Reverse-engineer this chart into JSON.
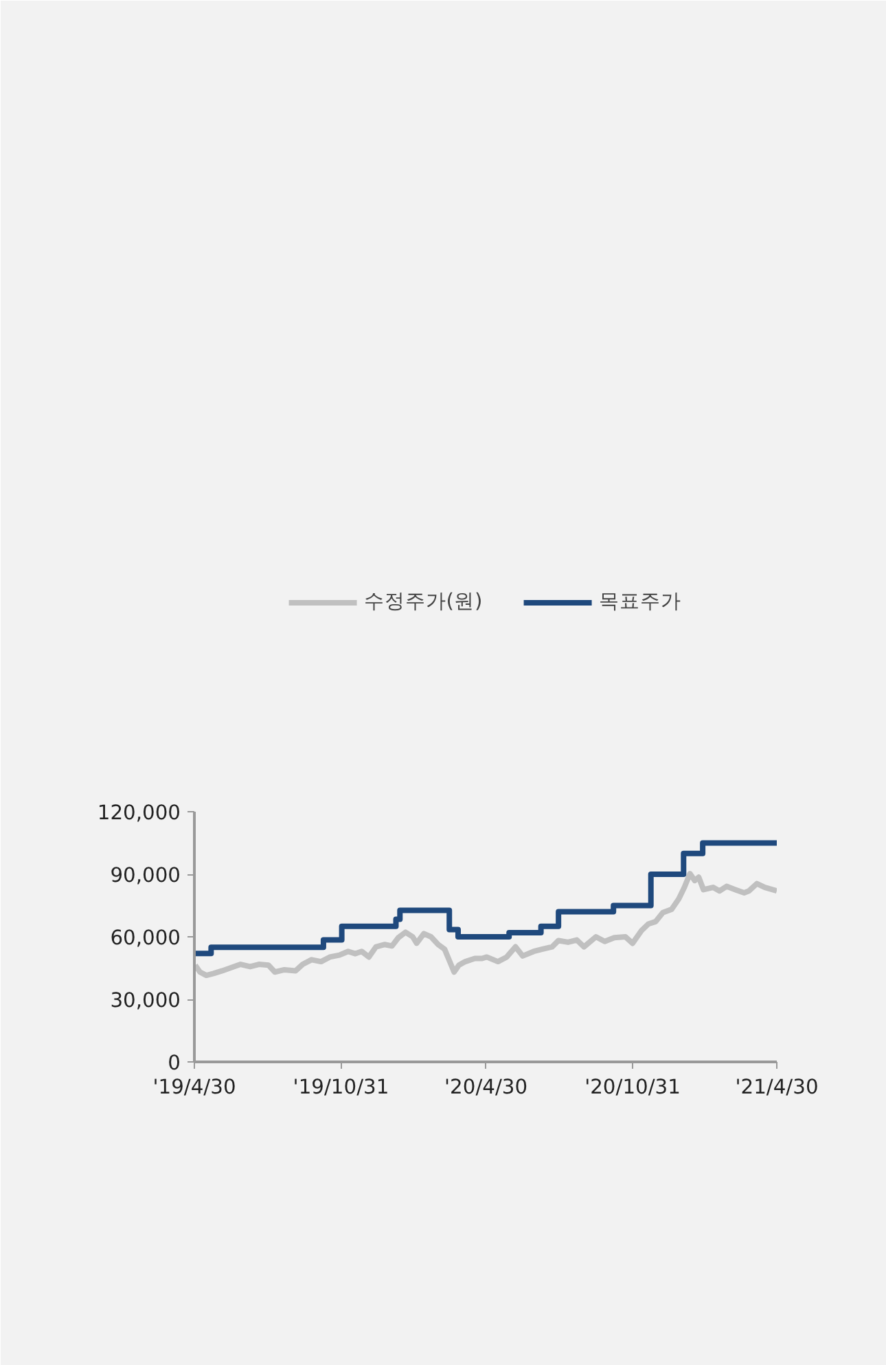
{
  "chart_data": {
    "type": "line",
    "xlim": [
      "2019-04-30",
      "2021-04-30"
    ],
    "xticks": [
      {
        "value": "2019-04-30",
        "label": "'19/4/30"
      },
      {
        "value": "2019-10-31",
        "label": "'19/10/31"
      },
      {
        "value": "2020-04-30",
        "label": "'20/4/30"
      },
      {
        "value": "2020-10-31",
        "label": "'20/10/31"
      },
      {
        "value": "2021-04-30",
        "label": "'21/4/30"
      }
    ],
    "ylim": [
      0,
      120000
    ],
    "yticks": [
      0,
      {
        "value": 30000,
        "label": "30,000"
      },
      {
        "value": 60000,
        "label": "60,000"
      },
      {
        "value": 90000,
        "label": "90,000"
      },
      {
        "value": 120000,
        "label": "120,000"
      }
    ],
    "grid": false,
    "legend": "top",
    "series": [
      {
        "name": "수정주가(원)",
        "color": "#c0c0c0",
        "x": [
          "2019-05-01",
          "2019-05-07",
          "2019-05-15",
          "2019-05-24",
          "2019-06-04",
          "2019-06-16",
          "2019-06-27",
          "2019-07-09",
          "2019-07-20",
          "2019-08-01",
          "2019-08-09",
          "2019-08-21",
          "2019-09-04",
          "2019-09-13",
          "2019-09-24",
          "2019-10-06",
          "2019-10-17",
          "2019-10-29",
          "2019-11-09",
          "2019-11-18",
          "2019-11-26",
          "2019-12-05",
          "2019-12-14",
          "2019-12-25",
          "2020-01-03",
          "2020-01-11",
          "2020-01-20",
          "2020-01-29",
          "2020-02-03",
          "2020-02-12",
          "2020-02-21",
          "2020-03-01",
          "2020-03-09",
          "2020-03-15",
          "2020-03-21",
          "2020-03-27",
          "2020-04-04",
          "2020-04-16",
          "2020-04-25",
          "2020-05-01",
          "2020-05-15",
          "2020-05-26",
          "2020-06-06",
          "2020-06-15",
          "2020-06-29",
          "2020-07-10",
          "2020-07-22",
          "2020-07-30",
          "2020-08-11",
          "2020-08-22",
          "2020-08-31",
          "2020-09-15",
          "2020-09-26",
          "2020-10-08",
          "2020-10-22",
          "2020-10-31",
          "2020-11-11",
          "2020-11-20",
          "2020-11-29",
          "2020-12-08",
          "2020-12-19",
          "2020-12-28",
          "2021-01-04",
          "2021-01-11",
          "2021-01-17",
          "2021-01-22",
          "2021-01-28",
          "2021-02-09",
          "2021-02-17",
          "2021-02-26",
          "2021-03-09",
          "2021-03-20",
          "2021-03-26",
          "2021-04-05",
          "2021-04-15",
          "2021-04-30"
        ],
        "values": [
          46400,
          43100,
          41500,
          42400,
          43700,
          45300,
          46800,
          45700,
          46800,
          46400,
          43100,
          44200,
          43700,
          46800,
          49000,
          48100,
          50300,
          51200,
          53000,
          51900,
          53000,
          50300,
          55200,
          56300,
          55600,
          59600,
          62200,
          60000,
          56900,
          61500,
          60000,
          56300,
          54100,
          48600,
          43100,
          46400,
          48100,
          49600,
          49600,
          50300,
          48100,
          50300,
          55200,
          50800,
          53000,
          54100,
          55200,
          58200,
          57400,
          58500,
          55200,
          60000,
          57800,
          59600,
          60000,
          56900,
          62900,
          66200,
          67300,
          71600,
          73200,
          78200,
          83700,
          90300,
          87000,
          88600,
          82600,
          83700,
          82000,
          84200,
          82600,
          81100,
          82000,
          85500,
          83700,
          82000
        ]
      },
      {
        "name": "목표주가",
        "color": "#1f497d",
        "type": "step",
        "x": [
          "2019-04-30",
          "2019-05-21",
          "2019-10-09",
          "2019-11-01",
          "2020-01-08",
          "2020-01-13",
          "2020-03-15",
          "2020-03-26",
          "2020-05-29",
          "2020-07-08",
          "2020-07-30",
          "2020-10-07",
          "2020-11-23",
          "2021-01-03",
          "2021-01-27",
          "2021-04-30"
        ],
        "values": [
          52000,
          55000,
          58500,
          65000,
          68400,
          72700,
          63500,
          60000,
          62000,
          65000,
          72000,
          75000,
          90000,
          100000,
          105000,
          105000
        ]
      }
    ]
  }
}
